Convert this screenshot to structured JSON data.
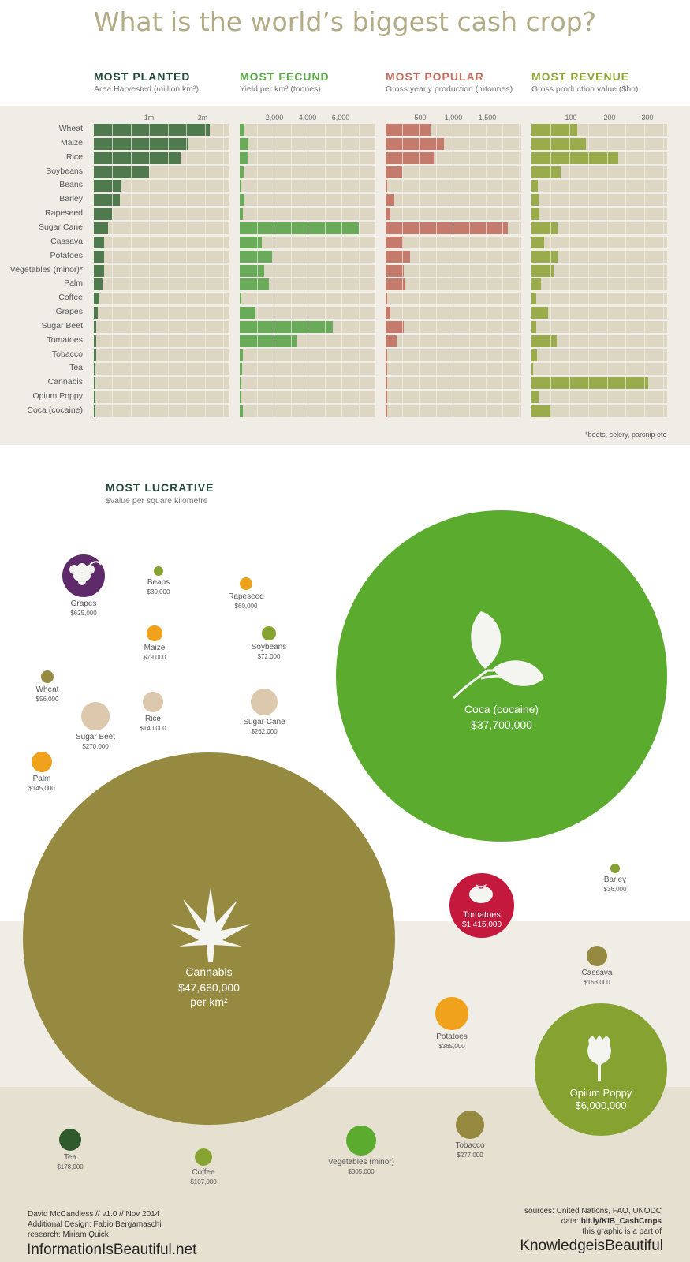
{
  "title": "What is the world’s biggest cash crop?",
  "sections": [
    {
      "heading": "MOST PLANTED",
      "sub": "Area Harvested (million km²)",
      "color": "#3b6b3d",
      "fill": "#4e7a4e",
      "ticks": [
        "1m",
        "2m"
      ]
    },
    {
      "heading": "MOST FECUND",
      "sub": "Yield per km² (tonnes)",
      "color": "#5daa49",
      "fill": "#6aab5a",
      "ticks": [
        "2,000",
        "4,000",
        "6,000"
      ]
    },
    {
      "heading": "MOST POPULAR",
      "sub": "Gross yearly production (mtonnes)",
      "color": "#c56f60",
      "fill": "#c47b6b",
      "ticks": [
        "500",
        "1,000",
        "1,500"
      ]
    },
    {
      "heading": "MOST REVENUE",
      "sub": "Gross production value ($bn)",
      "color": "#8ea83a",
      "fill": "#9aab4c",
      "ticks": [
        "100",
        "200",
        "300"
      ]
    }
  ],
  "footnote": "*beets, celery, parsnip etc",
  "chart_data": [
    {
      "type": "bar",
      "title": "MOST PLANTED",
      "subtitle": "Area Harvested (million km²)",
      "unit": "million km²",
      "categories": [
        "Wheat",
        "Maize",
        "Rice",
        "Soybeans",
        "Beans",
        "Barley",
        "Rapeseed",
        "Sugar Cane",
        "Cassava",
        "Potatoes",
        "Vegetables (minor)*",
        "Palm",
        "Coffee",
        "Grapes",
        "Sugar Beet",
        "Tomatoes",
        "Tobacco",
        "Tea",
        "Cannabis",
        "Opium Poppy",
        "Coca (cocaine)"
      ],
      "values": [
        2.2,
        1.8,
        1.65,
        1.05,
        0.52,
        0.5,
        0.35,
        0.27,
        0.2,
        0.19,
        0.19,
        0.17,
        0.1,
        0.07,
        0.05,
        0.05,
        0.04,
        0.03,
        0.003,
        0.002,
        0.002
      ],
      "xlim": [
        0,
        2.57
      ]
    },
    {
      "type": "bar",
      "title": "MOST FECUND",
      "subtitle": "Yield per km² (tonnes)",
      "unit": "tonnes per km²",
      "categories": [
        "Wheat",
        "Maize",
        "Rice",
        "Soybeans",
        "Beans",
        "Barley",
        "Rapeseed",
        "Sugar Cane",
        "Cassava",
        "Potatoes",
        "Vegetables (minor)*",
        "Palm",
        "Coffee",
        "Grapes",
        "Sugar Beet",
        "Tomatoes",
        "Tobacco",
        "Tea",
        "Cannabis",
        "Opium Poppy",
        "Coca (cocaine)"
      ],
      "values": [
        300,
        520,
        450,
        250,
        80,
        280,
        180,
        7000,
        1300,
        1920,
        1450,
        1700,
        80,
        920,
        5500,
        3350,
        170,
        150,
        20,
        20,
        180
      ],
      "xlim": [
        0,
        8000
      ]
    },
    {
      "type": "bar",
      "title": "MOST POPULAR",
      "subtitle": "Gross yearly production (mtonnes)",
      "unit": "mtonnes",
      "categories": [
        "Wheat",
        "Maize",
        "Rice",
        "Soybeans",
        "Beans",
        "Barley",
        "Rapeseed",
        "Sugar Cane",
        "Cassava",
        "Potatoes",
        "Vegetables (minor)*",
        "Palm",
        "Coffee",
        "Grapes",
        "Sugar Beet",
        "Tomatoes",
        "Tobacco",
        "Tea",
        "Cannabis",
        "Opium Poppy",
        "Coca (cocaine)"
      ],
      "values": [
        670,
        870,
        720,
        250,
        25,
        130,
        65,
        1830,
        260,
        370,
        270,
        300,
        9,
        70,
        270,
        160,
        7,
        5,
        0,
        0,
        1
      ],
      "xlim": [
        0,
        2030
      ]
    },
    {
      "type": "bar",
      "title": "MOST REVENUE",
      "subtitle": "Gross production value ($bn)",
      "unit": "$bn",
      "categories": [
        "Wheat",
        "Maize",
        "Rice",
        "Soybeans",
        "Beans",
        "Barley",
        "Rapeseed",
        "Sugar Cane",
        "Cassava",
        "Potatoes",
        "Vegetables (minor)*",
        "Palm",
        "Coffee",
        "Grapes",
        "Sugar Beet",
        "Tomatoes",
        "Tobacco",
        "Tea",
        "Cannabis",
        "Opium Poppy",
        "Coca (cocaine)"
      ],
      "values": [
        122,
        144,
        231,
        77,
        17,
        18,
        21,
        69,
        33,
        70,
        58,
        25,
        12,
        44,
        12,
        68,
        15,
        4,
        310,
        19,
        52
      ],
      "xlim": [
        0,
        360
      ]
    },
    {
      "type": "bubble",
      "title": "MOST LUCRATIVE",
      "subtitle": "$value per square kilometre",
      "points": [
        {
          "name": "Cannabis",
          "value_text": "$47,660,000",
          "value_text2": "per km²",
          "value": 47660000,
          "color": "#968a40"
        },
        {
          "name": "Coca (cocaine)",
          "value_text": "$37,700,000",
          "value": 37700000,
          "color": "#5bab2f"
        },
        {
          "name": "Opium Poppy",
          "value_text": "$6,000,000",
          "value": 6000000,
          "color": "#86a332"
        },
        {
          "name": "Tomatoes",
          "value_text": "$1,415,000",
          "value": 1415000,
          "color": "#c4183d"
        },
        {
          "name": "Grapes",
          "value_text": "$625,000",
          "value": 625000,
          "color": "#5e2a69"
        },
        {
          "name": "Potatoes",
          "value_text": "$365,000",
          "value": 365000,
          "color": "#f0a21c"
        },
        {
          "name": "Vegetables (minor)",
          "value_text": "$305,000",
          "value": 305000,
          "color": "#5bab2f"
        },
        {
          "name": "Tobacco",
          "value_text": "$277,000",
          "value": 277000,
          "color": "#968a40"
        },
        {
          "name": "Sugar Beet",
          "value_text": "$270,000",
          "value": 270000,
          "color": "#dcc9ad"
        },
        {
          "name": "Sugar Cane",
          "value_text": "$262,000",
          "value": 262000,
          "color": "#dcc9ad"
        },
        {
          "name": "Tea",
          "value_text": "$178,000",
          "value": 178000,
          "color": "#2e5a2c"
        },
        {
          "name": "Cassava",
          "value_text": "$153,000",
          "value": 153000,
          "color": "#968a40"
        },
        {
          "name": "Palm",
          "value_text": "$145,000",
          "value": 145000,
          "color": "#f0a21c"
        },
        {
          "name": "Rice",
          "value_text": "$140,000",
          "value": 140000,
          "color": "#dcc9ad"
        },
        {
          "name": "Coffee",
          "value_text": "$107,000",
          "value": 107000,
          "color": "#86a332"
        },
        {
          "name": "Maize",
          "value_text": "$79,000",
          "value": 79000,
          "color": "#f0a21c"
        },
        {
          "name": "Soybeans",
          "value_text": "$72,000",
          "value": 72000,
          "color": "#86a332"
        },
        {
          "name": "Rapeseed",
          "value_text": "$60,000",
          "value": 60000,
          "color": "#f0a21c"
        },
        {
          "name": "Wheat",
          "value_text": "$56,000",
          "value": 56000,
          "color": "#968a40"
        },
        {
          "name": "Barley",
          "value_text": "$36,000",
          "value": 36000,
          "color": "#86a332"
        },
        {
          "name": "Beans",
          "value_text": "$30,000",
          "value": 30000,
          "color": "#86a332"
        }
      ]
    }
  ],
  "lucrative": {
    "heading": "MOST LUCRATIVE",
    "sub": "$value per square kilometre"
  },
  "credits": {
    "line1": "David McCandless // v1.0 // Nov 2014",
    "line2": "Additional Design: Fabio Bergamaschi",
    "line3": "research: Miriam Quick",
    "brand": "InformationIsBeautiful.net",
    "src1": "sources: United Nations, FAO, UNODC",
    "src2_prefix": "data: ",
    "src2_link": "bit.ly/KIB_CashCrops",
    "src3": "this graphic is a part of",
    "brand2": "KnowledgeisBeautiful"
  }
}
